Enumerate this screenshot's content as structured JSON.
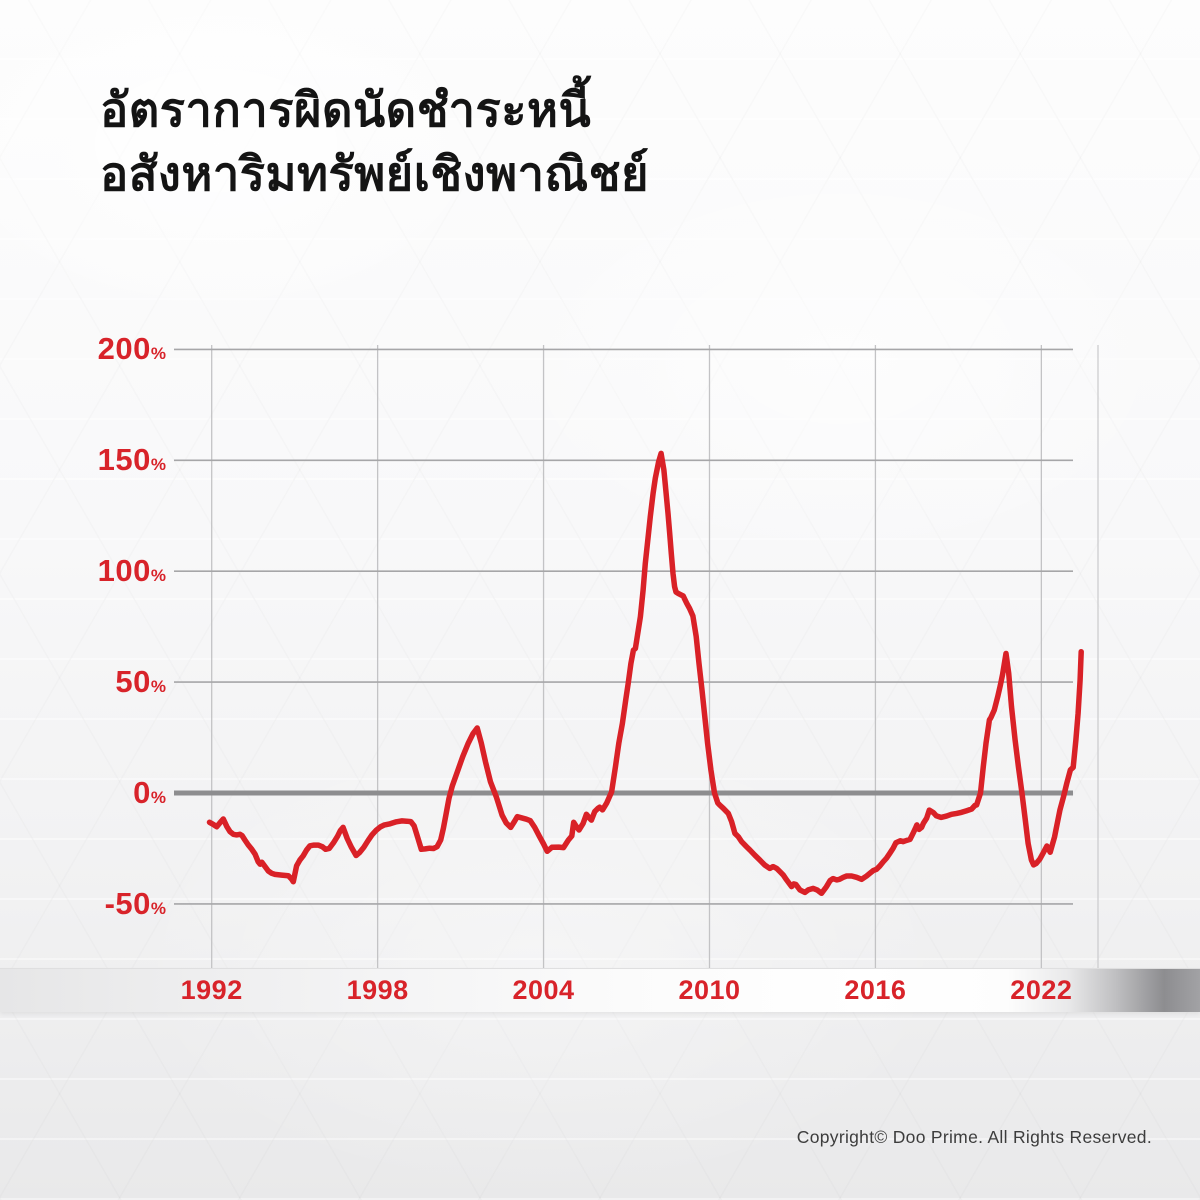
{
  "title": {
    "line1": "อัตราการผิดนัดชำระหนี้",
    "line2": "อสังหาริมทรัพย์เชิงพาณิชย์"
  },
  "footer": {
    "copyright": "Copyright© Doo Prime. All Rights Reserved."
  },
  "colors": {
    "accent_red": "#d8232a",
    "line_red": "#d92127",
    "grid_line": "#a6a6a8",
    "grid_line_vertical": "#c3c3c5",
    "zero_line": "#8d8d8f",
    "title_text": "#141414",
    "copyright_text": "#3d3d3d"
  },
  "chart_data": {
    "type": "line",
    "title": "อัตราการผิดนัดชำระหนี้อสังหาริมทรัพย์เชิงพาณิชย์",
    "xlabel": "",
    "ylabel": "",
    "grid": true,
    "legend": false,
    "xlim": [
      1991.7,
      2024.1
    ],
    "ylim": [
      -50,
      200
    ],
    "y_suffix": "%",
    "y_ticks": [
      {
        "value": 200,
        "label": "200"
      },
      {
        "value": 150,
        "label": "150"
      },
      {
        "value": 100,
        "label": "100"
      },
      {
        "value": 50,
        "label": "50"
      },
      {
        "value": 0,
        "label": "0"
      },
      {
        "value": -50,
        "label": "-50"
      }
    ],
    "x_ticks": [
      {
        "value": 1992,
        "label": "1992"
      },
      {
        "value": 1998,
        "label": "1998"
      },
      {
        "value": 2004,
        "label": "2004"
      },
      {
        "value": 2010,
        "label": "2010"
      },
      {
        "value": 2016,
        "label": "2016"
      },
      {
        "value": 2022,
        "label": "2022"
      }
    ],
    "series": [
      {
        "color": "#d92127",
        "points": [
          [
            1991.92,
            -13.2
          ],
          [
            1992.05,
            -14.1
          ],
          [
            1992.18,
            -15.2
          ],
          [
            1992.3,
            -13.4
          ],
          [
            1992.42,
            -11.7
          ],
          [
            1992.55,
            -15.2
          ],
          [
            1992.66,
            -17.4
          ],
          [
            1992.78,
            -18.6
          ],
          [
            1992.9,
            -18.9
          ],
          [
            1993.02,
            -18.6
          ],
          [
            1993.1,
            -19.2
          ],
          [
            1993.2,
            -21.2
          ],
          [
            1993.32,
            -23.4
          ],
          [
            1993.45,
            -25.4
          ],
          [
            1993.57,
            -27.6
          ],
          [
            1993.68,
            -31.0
          ],
          [
            1993.75,
            -32.1
          ],
          [
            1993.81,
            -31.2
          ],
          [
            1993.93,
            -33.2
          ],
          [
            1994.05,
            -35.2
          ],
          [
            1994.17,
            -36.2
          ],
          [
            1994.29,
            -36.7
          ],
          [
            1994.53,
            -37.0
          ],
          [
            1994.77,
            -37.3
          ],
          [
            1994.89,
            -38.8
          ],
          [
            1994.95,
            -40.0
          ],
          [
            1995.07,
            -32.8
          ],
          [
            1995.19,
            -30.2
          ],
          [
            1995.31,
            -28.3
          ],
          [
            1995.43,
            -25.7
          ],
          [
            1995.55,
            -23.8
          ],
          [
            1995.7,
            -23.5
          ],
          [
            1995.85,
            -23.5
          ],
          [
            1996.0,
            -24.2
          ],
          [
            1996.12,
            -25.4
          ],
          [
            1996.25,
            -25.0
          ],
          [
            1996.4,
            -22.5
          ],
          [
            1996.55,
            -19.5
          ],
          [
            1996.65,
            -17.0
          ],
          [
            1996.75,
            -15.5
          ],
          [
            1996.9,
            -20.5
          ],
          [
            1997.05,
            -24.5
          ],
          [
            1997.22,
            -28.2
          ],
          [
            1997.35,
            -26.8
          ],
          [
            1997.5,
            -24.5
          ],
          [
            1997.65,
            -21.5
          ],
          [
            1997.8,
            -18.8
          ],
          [
            1997.95,
            -16.8
          ],
          [
            1998.1,
            -15.3
          ],
          [
            1998.25,
            -14.4
          ],
          [
            1998.45,
            -13.9
          ],
          [
            1998.68,
            -13.0
          ],
          [
            1998.88,
            -12.6
          ],
          [
            1999.05,
            -12.7
          ],
          [
            1999.2,
            -12.9
          ],
          [
            1999.32,
            -14.8
          ],
          [
            1999.45,
            -20.0
          ],
          [
            1999.58,
            -25.4
          ],
          [
            1999.72,
            -25.2
          ],
          [
            1999.88,
            -24.9
          ],
          [
            2000.02,
            -25.0
          ],
          [
            2000.15,
            -24.2
          ],
          [
            2000.28,
            -21.2
          ],
          [
            2000.38,
            -15.9
          ],
          [
            2000.48,
            -9.2
          ],
          [
            2000.58,
            -2.4
          ],
          [
            2000.7,
            3.2
          ],
          [
            2000.88,
            9.5
          ],
          [
            2001.08,
            16.5
          ],
          [
            2001.28,
            22.5
          ],
          [
            2001.45,
            26.8
          ],
          [
            2001.6,
            29.3
          ],
          [
            2001.75,
            22.5
          ],
          [
            2001.9,
            14.0
          ],
          [
            2002.08,
            5.0
          ],
          [
            2002.3,
            -2.0
          ],
          [
            2002.5,
            -10.0
          ],
          [
            2002.65,
            -13.5
          ],
          [
            2002.81,
            -15.5
          ],
          [
            2002.95,
            -12.8
          ],
          [
            2003.05,
            -10.7
          ],
          [
            2003.2,
            -11.2
          ],
          [
            2003.38,
            -11.8
          ],
          [
            2003.52,
            -12.5
          ],
          [
            2003.68,
            -15.5
          ],
          [
            2003.85,
            -19.5
          ],
          [
            2004.0,
            -23.0
          ],
          [
            2004.13,
            -26.3
          ],
          [
            2004.3,
            -24.5
          ],
          [
            2004.55,
            -24.4
          ],
          [
            2004.72,
            -24.6
          ],
          [
            2004.9,
            -21.2
          ],
          [
            2005.02,
            -19.4
          ],
          [
            2005.09,
            -13.2
          ],
          [
            2005.19,
            -15.2
          ],
          [
            2005.28,
            -16.7
          ],
          [
            2005.43,
            -13.7
          ],
          [
            2005.55,
            -9.6
          ],
          [
            2005.67,
            -11.4
          ],
          [
            2005.73,
            -12.2
          ],
          [
            2005.85,
            -8.4
          ],
          [
            2005.97,
            -6.9
          ],
          [
            2006.03,
            -6.4
          ],
          [
            2006.13,
            -7.6
          ],
          [
            2006.28,
            -4.6
          ],
          [
            2006.46,
            0.5
          ],
          [
            2006.6,
            12.0
          ],
          [
            2006.72,
            22.4
          ],
          [
            2006.85,
            31.4
          ],
          [
            2006.97,
            41.9
          ],
          [
            2007.06,
            49.4
          ],
          [
            2007.16,
            58.4
          ],
          [
            2007.25,
            64.4
          ],
          [
            2007.32,
            65.2
          ],
          [
            2007.5,
            79.5
          ],
          [
            2007.6,
            91.5
          ],
          [
            2007.68,
            103.5
          ],
          [
            2007.77,
            114.0
          ],
          [
            2007.86,
            124.6
          ],
          [
            2007.96,
            135.1
          ],
          [
            2008.04,
            141.9
          ],
          [
            2008.16,
            149.3
          ],
          [
            2008.25,
            153.1
          ],
          [
            2008.35,
            145.6
          ],
          [
            2008.42,
            136.6
          ],
          [
            2008.5,
            126.1
          ],
          [
            2008.56,
            117.0
          ],
          [
            2008.62,
            108.0
          ],
          [
            2008.68,
            99.0
          ],
          [
            2008.74,
            93.0
          ],
          [
            2008.79,
            90.6
          ],
          [
            2008.87,
            90.0
          ],
          [
            2008.93,
            89.6
          ],
          [
            2009.05,
            88.8
          ],
          [
            2009.18,
            85.5
          ],
          [
            2009.28,
            83.2
          ],
          [
            2009.4,
            79.8
          ],
          [
            2009.52,
            70.5
          ],
          [
            2009.62,
            58.4
          ],
          [
            2009.73,
            46.4
          ],
          [
            2009.83,
            34.4
          ],
          [
            2009.93,
            22.4
          ],
          [
            2010.05,
            10.4
          ],
          [
            2010.18,
            0.0
          ],
          [
            2010.3,
            -4.5
          ],
          [
            2010.37,
            -5.4
          ],
          [
            2010.5,
            -6.9
          ],
          [
            2010.68,
            -9.2
          ],
          [
            2010.8,
            -12.9
          ],
          [
            2010.92,
            -18.2
          ],
          [
            2011.04,
            -19.7
          ],
          [
            2011.16,
            -21.9
          ],
          [
            2011.34,
            -24.2
          ],
          [
            2011.46,
            -25.7
          ],
          [
            2011.64,
            -28.0
          ],
          [
            2011.82,
            -30.2
          ],
          [
            2012.0,
            -32.5
          ],
          [
            2012.18,
            -34.0
          ],
          [
            2012.3,
            -33.2
          ],
          [
            2012.43,
            -34.0
          ],
          [
            2012.55,
            -35.5
          ],
          [
            2012.67,
            -37.0
          ],
          [
            2012.79,
            -39.2
          ],
          [
            2012.97,
            -42.2
          ],
          [
            2013.05,
            -41.0
          ],
          [
            2013.12,
            -41.2
          ],
          [
            2013.27,
            -43.7
          ],
          [
            2013.45,
            -44.8
          ],
          [
            2013.57,
            -43.7
          ],
          [
            2013.75,
            -43.0
          ],
          [
            2013.9,
            -43.8
          ],
          [
            2014.05,
            -45.2
          ],
          [
            2014.23,
            -42.2
          ],
          [
            2014.36,
            -39.5
          ],
          [
            2014.47,
            -38.6
          ],
          [
            2014.6,
            -39.2
          ],
          [
            2014.7,
            -38.9
          ],
          [
            2014.84,
            -38.0
          ],
          [
            2014.96,
            -37.4
          ],
          [
            2015.14,
            -37.4
          ],
          [
            2015.32,
            -38.0
          ],
          [
            2015.5,
            -38.9
          ],
          [
            2015.68,
            -37.4
          ],
          [
            2015.8,
            -36.2
          ],
          [
            2015.92,
            -35.0
          ],
          [
            2016.04,
            -34.4
          ],
          [
            2016.16,
            -32.9
          ],
          [
            2016.28,
            -31.0
          ],
          [
            2016.4,
            -29.4
          ],
          [
            2016.52,
            -27.2
          ],
          [
            2016.64,
            -24.9
          ],
          [
            2016.74,
            -22.4
          ],
          [
            2016.9,
            -21.5
          ],
          [
            2017.0,
            -21.9
          ],
          [
            2017.1,
            -21.5
          ],
          [
            2017.25,
            -20.9
          ],
          [
            2017.36,
            -18.2
          ],
          [
            2017.46,
            -15.5
          ],
          [
            2017.5,
            -14.4
          ],
          [
            2017.58,
            -16.4
          ],
          [
            2017.67,
            -15.5
          ],
          [
            2017.73,
            -13.7
          ],
          [
            2017.85,
            -11.4
          ],
          [
            2017.95,
            -7.7
          ],
          [
            2018.1,
            -8.9
          ],
          [
            2018.2,
            -10.3
          ],
          [
            2018.37,
            -11.0
          ],
          [
            2018.57,
            -10.4
          ],
          [
            2018.75,
            -9.6
          ],
          [
            2018.94,
            -9.2
          ],
          [
            2019.12,
            -8.7
          ],
          [
            2019.3,
            -8.0
          ],
          [
            2019.48,
            -7.2
          ],
          [
            2019.6,
            -5.6
          ],
          [
            2019.66,
            -5.4
          ],
          [
            2019.8,
            0.0
          ],
          [
            2019.9,
            11.9
          ],
          [
            2020.0,
            22.4
          ],
          [
            2020.12,
            32.9
          ],
          [
            2020.18,
            34.1
          ],
          [
            2020.3,
            37.4
          ],
          [
            2020.42,
            43.4
          ],
          [
            2020.52,
            48.7
          ],
          [
            2020.6,
            53.5
          ],
          [
            2020.72,
            62.9
          ],
          [
            2020.82,
            54.0
          ],
          [
            2020.92,
            38.9
          ],
          [
            2021.05,
            23.9
          ],
          [
            2021.17,
            11.9
          ],
          [
            2021.3,
            -0.2
          ],
          [
            2021.42,
            -12.2
          ],
          [
            2021.52,
            -22.7
          ],
          [
            2021.64,
            -30.2
          ],
          [
            2021.72,
            -32.4
          ],
          [
            2021.82,
            -31.7
          ],
          [
            2021.94,
            -29.9
          ],
          [
            2022.06,
            -27.2
          ],
          [
            2022.2,
            -23.9
          ],
          [
            2022.32,
            -26.7
          ],
          [
            2022.48,
            -19.7
          ],
          [
            2022.67,
            -7.7
          ],
          [
            2022.8,
            -1.7
          ],
          [
            2022.92,
            4.4
          ],
          [
            2023.05,
            10.4
          ],
          [
            2023.15,
            11.6
          ],
          [
            2023.25,
            24.0
          ],
          [
            2023.33,
            36.0
          ],
          [
            2023.4,
            50.9
          ],
          [
            2023.44,
            63.7
          ]
        ]
      }
    ]
  }
}
